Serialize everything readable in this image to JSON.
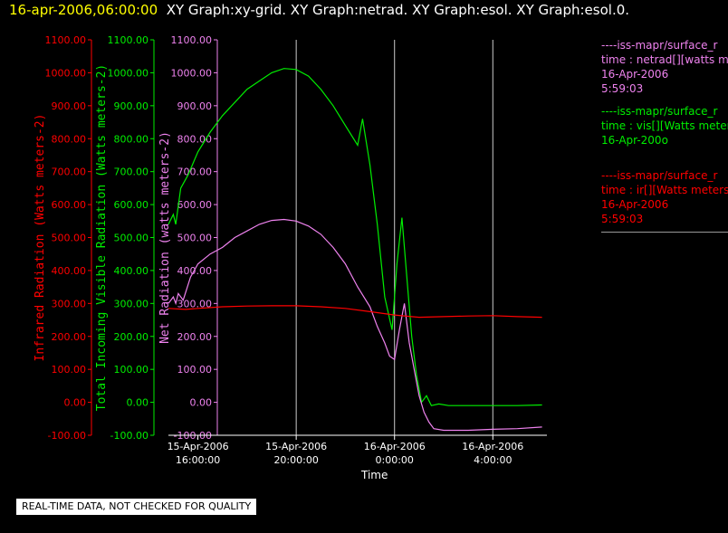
{
  "title": {
    "timestamp": "16-apr-2006,06:00:00",
    "graphs": "XY Graph:xy-grid.  XY Graph:netrad.  XY Graph:esol.  XY Graph:esol.0."
  },
  "legend": [
    {
      "header": "----iss-mapr/surface_r",
      "desc": "time : netrad[][watts m",
      "date": "16-Apr-2006",
      "time": "5:59:03",
      "color": "#ee82ee"
    },
    {
      "header": "----iss-mapr/surface_r",
      "desc": "time : vis[][Watts meter",
      "date": "16-Apr-200o",
      "time": "",
      "color": "#00ee00"
    },
    {
      "header": "----iss-mapr/surface_r",
      "desc": "time : ir[][Watts meters",
      "date": "16-Apr-2006",
      "time": "5:59:03",
      "color": "#ff0000"
    }
  ],
  "note": "REAL-TIME DATA, NOT CHECKED FOR QUALITY",
  "chart_data": {
    "type": "line",
    "xlabel": "Time",
    "x_ticks": [
      {
        "t": 0,
        "l1": "15-Apr-2006",
        "l2": "16:00:00"
      },
      {
        "t": 4,
        "l1": "15-Apr-2006",
        "l2": "20:00:00"
      },
      {
        "t": 8,
        "l1": "16-Apr-2006",
        "l2": "0:00:00"
      },
      {
        "t": 12,
        "l1": "16-Apr-2006",
        "l2": "4:00:00"
      }
    ],
    "xlim": [
      -1.2,
      14.2
    ],
    "vertical_grid": [
      4,
      8,
      12
    ],
    "axes": [
      {
        "id": "ir",
        "label": "Infrared Radiation (Watts meters-2)",
        "color": "#ff0000",
        "ylim": [
          -100,
          1100
        ],
        "step": 100
      },
      {
        "id": "vis",
        "label": "Total Incoming Visible Radiation (Watts meters-2)",
        "color": "#00ee00",
        "ylim": [
          -100,
          1100
        ],
        "step": 100
      },
      {
        "id": "net",
        "label": "Net Radiation (watts meters-2)",
        "color": "#ee82ee",
        "ylim": [
          -100,
          1100
        ],
        "step": 100
      }
    ],
    "series": [
      {
        "name": "netrad",
        "axis": "net",
        "color": "#ee82ee",
        "x": [
          -1.2,
          -1.0,
          -0.9,
          -0.8,
          -0.6,
          -0.3,
          0,
          0.5,
          1,
          1.5,
          2,
          2.5,
          3,
          3.5,
          4,
          4.5,
          5,
          5.5,
          6,
          6.5,
          7,
          7.3,
          7.6,
          7.8,
          8.0,
          8.2,
          8.4,
          8.6,
          8.8,
          9.0,
          9.2,
          9.4,
          9.6,
          10,
          11,
          12,
          13,
          14
        ],
        "y": [
          300,
          320,
          300,
          330,
          310,
          380,
          420,
          450,
          470,
          500,
          520,
          540,
          552,
          555,
          550,
          535,
          510,
          470,
          420,
          350,
          290,
          230,
          180,
          140,
          130,
          220,
          300,
          180,
          100,
          20,
          -30,
          -60,
          -80,
          -85,
          -85,
          -82,
          -80,
          -75
        ]
      },
      {
        "name": "vis",
        "axis": "vis",
        "color": "#00ee00",
        "x": [
          -1.2,
          -1.0,
          -0.9,
          -0.7,
          -0.4,
          0,
          0.5,
          1,
          1.5,
          2,
          2.5,
          3,
          3.5,
          4,
          4.5,
          5,
          5.5,
          6,
          6.5,
          6.7,
          7.0,
          7.3,
          7.6,
          7.9,
          8.1,
          8.3,
          8.5,
          8.7,
          8.9,
          9.1,
          9.3,
          9.5,
          9.8,
          10.2,
          11,
          12,
          13,
          14
        ],
        "y": [
          540,
          570,
          540,
          650,
          690,
          760,
          820,
          870,
          910,
          950,
          975,
          1000,
          1013,
          1010,
          990,
          950,
          900,
          840,
          780,
          860,
          720,
          540,
          320,
          220,
          420,
          560,
          380,
          200,
          80,
          0,
          20,
          -10,
          -5,
          -10,
          -10,
          -10,
          -10,
          -8
        ]
      },
      {
        "name": "ir",
        "axis": "ir",
        "color": "#ff0000",
        "x": [
          -1.2,
          -0.5,
          0,
          1,
          2,
          3,
          4,
          5,
          6,
          7,
          8,
          9,
          10,
          11,
          12,
          13,
          14
        ],
        "y": [
          285,
          282,
          285,
          290,
          292,
          293,
          293,
          290,
          285,
          275,
          265,
          258,
          260,
          262,
          263,
          260,
          258
        ]
      }
    ]
  }
}
